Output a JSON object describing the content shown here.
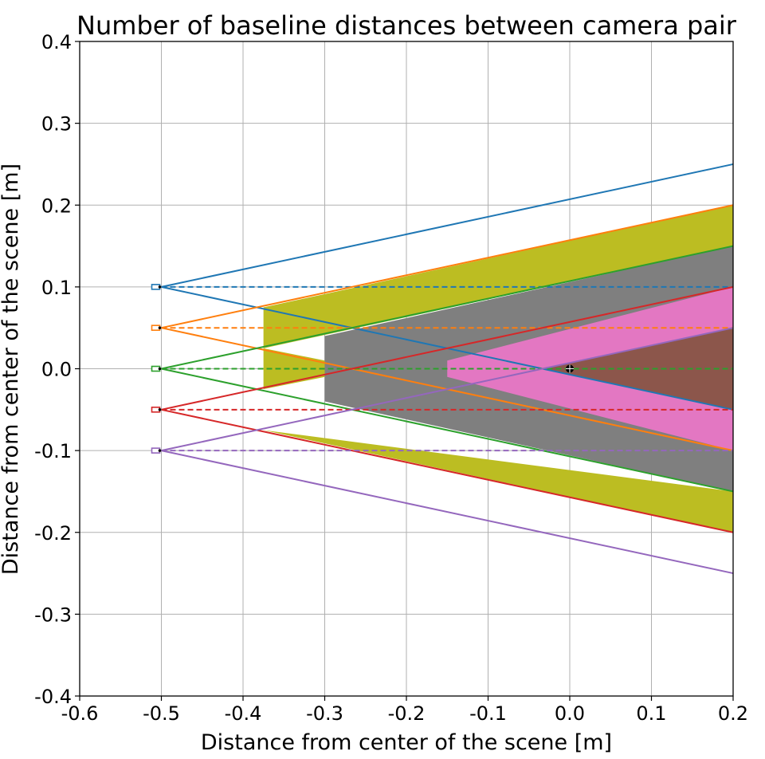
{
  "chart_data": {
    "type": "line",
    "title": "Number of baseline distances between camera pair",
    "xlabel": "Distance from center of the scene [m]",
    "ylabel": "Distance from center of the scene [m]",
    "xlim": [
      -0.6,
      0.2
    ],
    "ylim": [
      -0.4,
      0.4
    ],
    "x_ticks": [
      -0.6,
      -0.5,
      -0.4,
      -0.3,
      -0.2,
      -0.1,
      0.0,
      0.1,
      0.2
    ],
    "x_tick_labels": [
      "-0.6",
      "-0.5",
      "-0.4",
      "-0.3",
      "-0.2",
      "-0.1",
      "0.0",
      "0.1",
      "0.2"
    ],
    "y_ticks": [
      0.4,
      0.3,
      0.2,
      0.1,
      0.0,
      -0.1,
      -0.2,
      -0.3,
      -0.4
    ],
    "y_tick_labels": [
      "0.4",
      "0.3",
      "0.2",
      "0.1",
      "0.0",
      "-0.1",
      "-0.2",
      "-0.3",
      "-0.4"
    ],
    "grid": true,
    "target": {
      "x": 0.0,
      "y": 0.0,
      "color": "#000000"
    },
    "cameras": [
      {
        "x": -0.5,
        "y": 0.1,
        "color": "#1f77b4",
        "upper_end": 0.25,
        "lower_end": -0.05
      },
      {
        "x": -0.5,
        "y": 0.05,
        "color": "#ff7f0e",
        "upper_end": 0.2,
        "lower_end": -0.1
      },
      {
        "x": -0.5,
        "y": 0.0,
        "color": "#2ca02c",
        "upper_end": 0.15,
        "lower_end": -0.15
      },
      {
        "x": -0.5,
        "y": -0.05,
        "color": "#d62728",
        "upper_end": 0.1,
        "lower_end": -0.2
      },
      {
        "x": -0.5,
        "y": -0.1,
        "color": "#9467bd",
        "upper_end": 0.05,
        "lower_end": -0.25
      }
    ],
    "coverage_regions": [
      {
        "level": 2,
        "color": "#bcbd22",
        "polygon": [
          [
            -0.375,
            0.075
          ],
          [
            0.2,
            0.2
          ],
          [
            0.2,
            0.15
          ],
          [
            -0.375,
            0.025
          ],
          [
            -0.25,
            0.0
          ],
          [
            -0.375,
            -0.025
          ],
          [
            -0.375,
            -0.075
          ],
          [
            0.2,
            -0.15
          ],
          [
            0.2,
            -0.2
          ],
          [
            -0.375,
            -0.075
          ]
        ]
      },
      {
        "level": 3,
        "color": "#7f7f7f",
        "polygon": [
          [
            -0.3,
            0.04
          ],
          [
            0.2,
            0.15
          ],
          [
            0.2,
            -0.15
          ],
          [
            -0.3,
            -0.04
          ]
        ]
      },
      {
        "level": 4,
        "color": "#e377c2",
        "polygon": [
          [
            -0.15,
            0.01
          ],
          [
            0.2,
            0.1
          ],
          [
            0.2,
            -0.1
          ],
          [
            -0.15,
            -0.01
          ]
        ]
      },
      {
        "level": 5,
        "color": "#8c564b",
        "polygon": [
          [
            -0.03,
            0.0
          ],
          [
            0.2,
            0.05
          ],
          [
            0.2,
            -0.05
          ]
        ]
      }
    ]
  }
}
